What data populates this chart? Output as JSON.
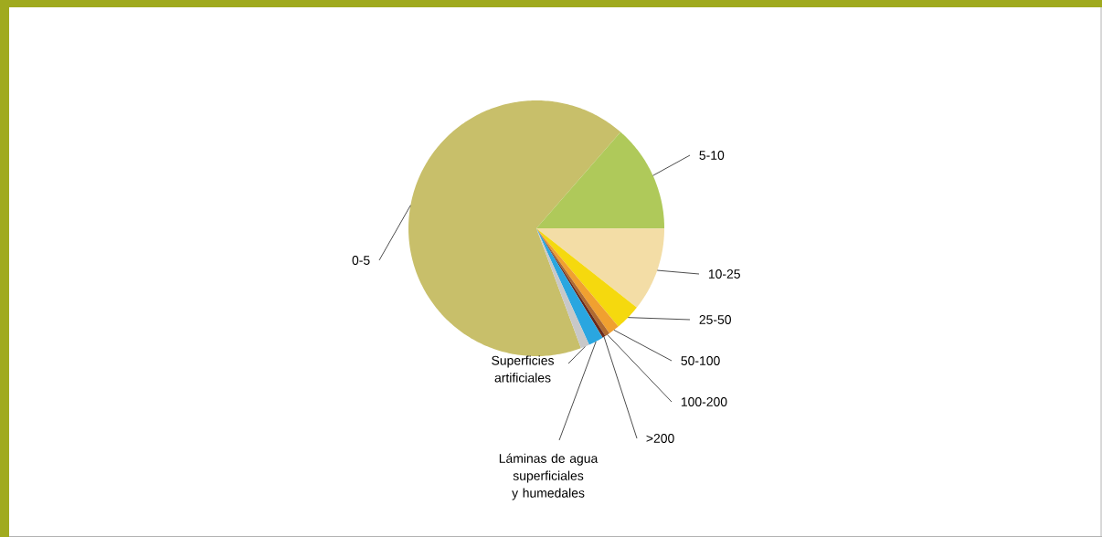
{
  "chart_data": {
    "type": "pie",
    "categories": [
      "0-5",
      "5-10",
      "10-25",
      "25-50",
      "50-100",
      "100-200",
      ">200",
      "Láminas de agua superficiales y humedales",
      "Superficies artificiales"
    ],
    "values": [
      67.1,
      13.6,
      10.6,
      3.3,
      1.4,
      0.6,
      0.4,
      1.9,
      1.1
    ],
    "colors": [
      "#c8bf6a",
      "#afc95a",
      "#f3dda6",
      "#f5d90e",
      "#f0a030",
      "#b06a30",
      "#6b2a1a",
      "#2aa6e0",
      "#c8c8c8"
    ],
    "legend": false
  }
}
